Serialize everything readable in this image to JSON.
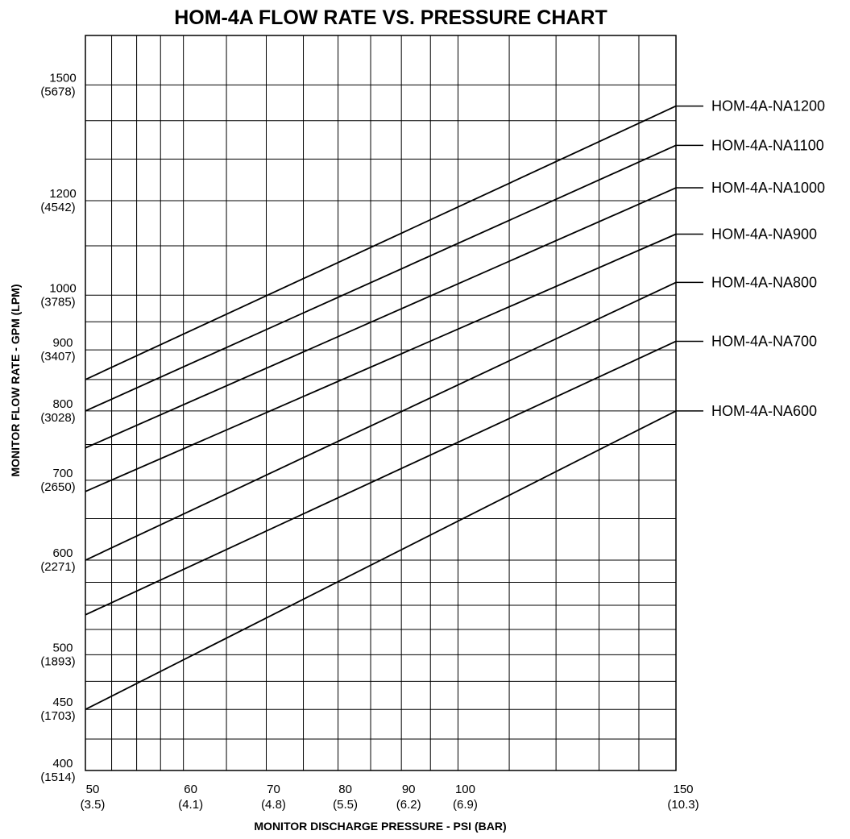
{
  "chart_data": {
    "type": "line",
    "title": "HOM-4A FLOW RATE VS. PRESSURE CHART",
    "xlabel": "MONITOR DISCHARGE PRESSURE - PSI (BAR)",
    "ylabel": "MONITOR FLOW RATE - GPM (LPM)",
    "x_scale": "log",
    "y_scale": "log",
    "xlim": [
      50,
      150
    ],
    "ylim": [
      400,
      1650
    ],
    "grid": true,
    "x_ticks": [
      {
        "value": 50,
        "label": "50",
        "sublabel": "(3.5)"
      },
      {
        "value": 60,
        "label": "60",
        "sublabel": "(4.1)"
      },
      {
        "value": 70,
        "label": "70",
        "sublabel": "(4.8)"
      },
      {
        "value": 80,
        "label": "80",
        "sublabel": "(5.5)"
      },
      {
        "value": 90,
        "label": "90",
        "sublabel": "(6.2)"
      },
      {
        "value": 100,
        "label": "100",
        "sublabel": "(6.9)"
      },
      {
        "value": 150,
        "label": "150",
        "sublabel": "(10.3)"
      }
    ],
    "y_ticks": [
      {
        "value": 400,
        "label": "400",
        "sublabel": "(1514)"
      },
      {
        "value": 450,
        "label": "450",
        "sublabel": "(1703)"
      },
      {
        "value": 500,
        "label": "500",
        "sublabel": "(1893)"
      },
      {
        "value": 600,
        "label": "600",
        "sublabel": "(2271)"
      },
      {
        "value": 700,
        "label": "700",
        "sublabel": "(2650)"
      },
      {
        "value": 800,
        "label": "800",
        "sublabel": "(3028)"
      },
      {
        "value": 900,
        "label": "900",
        "sublabel": "(3407)"
      },
      {
        "value": 1000,
        "label": "1000",
        "sublabel": "(3785)"
      },
      {
        "value": 1200,
        "label": "1200",
        "sublabel": "(4542)"
      },
      {
        "value": 1500,
        "label": "1500",
        "sublabel": "(5678)"
      }
    ],
    "x_grid": [
      50,
      52.5,
      55,
      57.5,
      60,
      65,
      70,
      75,
      80,
      85,
      90,
      95,
      100,
      110,
      120,
      130,
      140,
      150
    ],
    "y_grid": [
      400,
      425,
      450,
      475,
      500,
      525,
      550,
      575,
      600,
      650,
      700,
      750,
      800,
      850,
      900,
      950,
      1000,
      1100,
      1200,
      1300,
      1400,
      1500
    ],
    "series": [
      {
        "name": "HOM-4A-NA1200",
        "x": [
          50,
          150
        ],
        "y": [
          850,
          1440
        ]
      },
      {
        "name": "HOM-4A-NA1100",
        "x": [
          50,
          150
        ],
        "y": [
          800,
          1335
        ]
      },
      {
        "name": "HOM-4A-NA1000",
        "x": [
          50,
          150
        ],
        "y": [
          745,
          1230
        ]
      },
      {
        "name": "HOM-4A-NA900",
        "x": [
          50,
          150
        ],
        "y": [
          685,
          1125
        ]
      },
      {
        "name": "HOM-4A-NA800",
        "x": [
          50,
          150
        ],
        "y": [
          600,
          1025
        ]
      },
      {
        "name": "HOM-4A-NA700",
        "x": [
          50,
          150
        ],
        "y": [
          540,
          915
        ]
      },
      {
        "name": "HOM-4A-NA600",
        "x": [
          50,
          150
        ],
        "y": [
          450,
          800
        ]
      }
    ]
  }
}
